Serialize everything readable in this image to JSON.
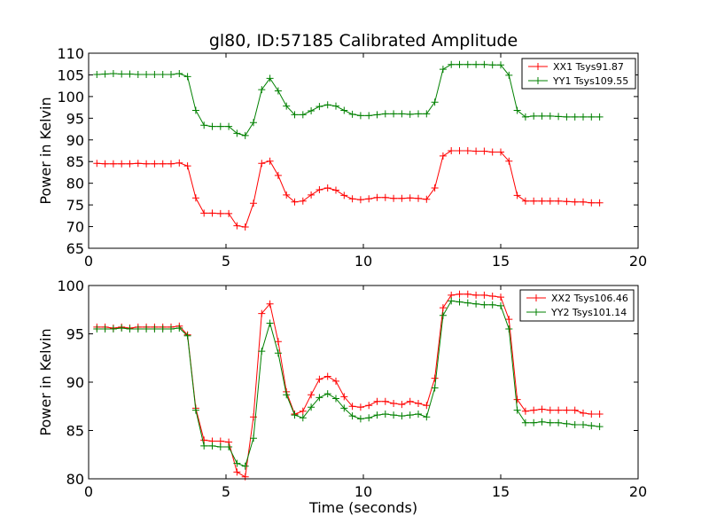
{
  "chart_data": [
    {
      "type": "line",
      "title": "gl80, ID:57185 Calibrated Amplitude",
      "xlabel": "",
      "ylabel": "Power in Kelvin",
      "xlim": [
        0,
        20
      ],
      "ylim": [
        65,
        110
      ],
      "xticks": [
        0,
        5,
        10,
        15,
        20
      ],
      "yticks": [
        65,
        70,
        75,
        80,
        85,
        90,
        95,
        100,
        105,
        110
      ],
      "legend_position": "top-right",
      "x": [
        0.3,
        0.6,
        0.9,
        1.2,
        1.5,
        1.8,
        2.1,
        2.4,
        2.7,
        3.0,
        3.3,
        3.6,
        3.9,
        4.2,
        4.5,
        4.8,
        5.1,
        5.4,
        5.7,
        6.0,
        6.3,
        6.6,
        6.9,
        7.2,
        7.5,
        7.8,
        8.1,
        8.4,
        8.7,
        9.0,
        9.3,
        9.6,
        9.9,
        10.2,
        10.5,
        10.8,
        11.1,
        11.4,
        11.7,
        12.0,
        12.3,
        12.6,
        12.9,
        13.2,
        13.5,
        13.8,
        14.1,
        14.4,
        14.7,
        15.0,
        15.3,
        15.6,
        15.9,
        16.2,
        16.5,
        16.8,
        17.1,
        17.4,
        17.7,
        18.0,
        18.3,
        18.6
      ],
      "series": [
        {
          "name": "XX1 Tsys91.87",
          "color": "#ff0000",
          "values": [
            84.6,
            84.5,
            84.5,
            84.5,
            84.5,
            84.6,
            84.5,
            84.5,
            84.5,
            84.5,
            84.7,
            84.0,
            76.6,
            73.1,
            73.1,
            73.0,
            73.0,
            70.2,
            69.9,
            75.4,
            84.6,
            85.1,
            81.8,
            77.3,
            75.7,
            75.9,
            77.3,
            78.5,
            78.9,
            78.4,
            77.2,
            76.4,
            76.2,
            76.4,
            76.7,
            76.7,
            76.5,
            76.5,
            76.6,
            76.5,
            76.3,
            78.9,
            86.3,
            87.5,
            87.5,
            87.5,
            87.4,
            87.4,
            87.2,
            87.2,
            85.1,
            77.2,
            75.9,
            75.9,
            75.9,
            75.9,
            75.9,
            75.8,
            75.7,
            75.7,
            75.5,
            75.5
          ]
        },
        {
          "name": "YY1 Tsys109.55",
          "color": "#008000",
          "values": [
            105.1,
            105.2,
            105.3,
            105.2,
            105.2,
            105.1,
            105.1,
            105.1,
            105.1,
            105.1,
            105.3,
            104.6,
            96.8,
            93.4,
            93.1,
            93.1,
            93.1,
            91.5,
            91.0,
            94.0,
            101.6,
            104.2,
            101.3,
            97.8,
            95.8,
            95.8,
            96.7,
            97.7,
            98.1,
            97.8,
            96.8,
            95.9,
            95.6,
            95.6,
            95.8,
            96.0,
            96.0,
            96.0,
            95.9,
            96.0,
            96.0,
            98.7,
            106.3,
            107.4,
            107.4,
            107.4,
            107.4,
            107.4,
            107.3,
            107.3,
            104.9,
            96.8,
            95.3,
            95.5,
            95.5,
            95.5,
            95.4,
            95.3,
            95.3,
            95.3,
            95.3,
            95.3
          ]
        }
      ]
    },
    {
      "type": "line",
      "title": "",
      "xlabel": "Time (seconds)",
      "ylabel": "Power in Kelvin",
      "xlim": [
        0,
        20
      ],
      "ylim": [
        80,
        100
      ],
      "xticks": [
        0,
        5,
        10,
        15,
        20
      ],
      "yticks": [
        80,
        85,
        90,
        95,
        100
      ],
      "legend_position": "top-right",
      "x": [
        0.3,
        0.6,
        0.9,
        1.2,
        1.5,
        1.8,
        2.1,
        2.4,
        2.7,
        3.0,
        3.3,
        3.6,
        3.9,
        4.2,
        4.5,
        4.8,
        5.1,
        5.4,
        5.7,
        6.0,
        6.3,
        6.6,
        6.9,
        7.2,
        7.5,
        7.8,
        8.1,
        8.4,
        8.7,
        9.0,
        9.3,
        9.6,
        9.9,
        10.2,
        10.5,
        10.8,
        11.1,
        11.4,
        11.7,
        12.0,
        12.3,
        12.6,
        12.9,
        13.2,
        13.5,
        13.8,
        14.1,
        14.4,
        14.7,
        15.0,
        15.3,
        15.6,
        15.9,
        16.2,
        16.5,
        16.8,
        17.1,
        17.4,
        17.7,
        18.0,
        18.3,
        18.6
      ],
      "series": [
        {
          "name": "XX2 Tsys106.46",
          "color": "#ff0000",
          "values": [
            95.7,
            95.7,
            95.6,
            95.7,
            95.6,
            95.7,
            95.7,
            95.7,
            95.7,
            95.7,
            95.8,
            94.9,
            87.3,
            84.0,
            83.9,
            83.9,
            83.8,
            80.7,
            80.2,
            86.4,
            97.1,
            98.1,
            94.2,
            89.0,
            86.7,
            87.0,
            88.7,
            90.3,
            90.6,
            90.1,
            88.5,
            87.5,
            87.4,
            87.6,
            88.0,
            88.0,
            87.8,
            87.7,
            88.0,
            87.8,
            87.6,
            90.4,
            97.7,
            99.0,
            99.1,
            99.1,
            99.0,
            99.0,
            98.9,
            98.8,
            96.5,
            88.2,
            87.0,
            87.1,
            87.2,
            87.1,
            87.1,
            87.1,
            87.1,
            86.8,
            86.7,
            86.7
          ]
        },
        {
          "name": "YY2 Tsys101.14",
          "color": "#008000",
          "values": [
            95.5,
            95.5,
            95.5,
            95.6,
            95.5,
            95.5,
            95.5,
            95.5,
            95.5,
            95.5,
            95.6,
            94.8,
            87.1,
            83.4,
            83.4,
            83.3,
            83.3,
            81.6,
            81.3,
            84.2,
            93.2,
            96.1,
            93.0,
            88.7,
            86.6,
            86.3,
            87.4,
            88.4,
            88.8,
            88.3,
            87.3,
            86.5,
            86.2,
            86.3,
            86.6,
            86.7,
            86.6,
            86.5,
            86.6,
            86.7,
            86.4,
            89.4,
            96.9,
            98.4,
            98.3,
            98.2,
            98.1,
            98.0,
            98.0,
            97.9,
            95.5,
            87.1,
            85.8,
            85.8,
            85.9,
            85.8,
            85.8,
            85.7,
            85.6,
            85.6,
            85.5,
            85.4
          ]
        }
      ]
    }
  ]
}
